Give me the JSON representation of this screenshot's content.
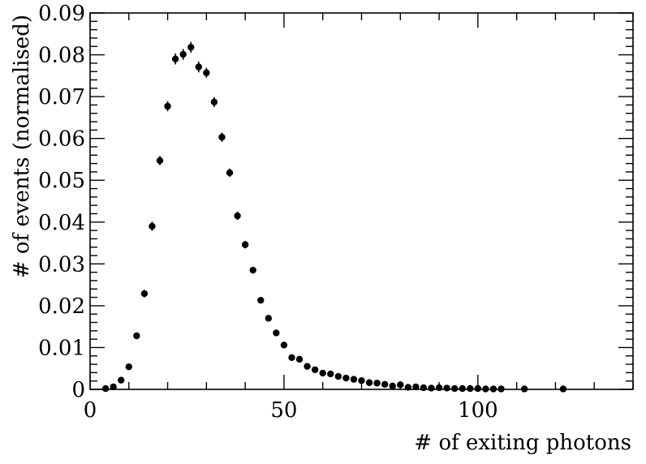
{
  "chart_data": {
    "type": "scatter",
    "title": "",
    "xlabel": "# of exiting photons",
    "ylabel": "# of events (normalised)",
    "xlim": [
      0,
      140
    ],
    "ylim": [
      0,
      0.09
    ],
    "xticks": [
      0,
      50,
      100
    ],
    "xtick_labels": [
      "0",
      "50",
      "100"
    ],
    "yticks": [
      0,
      0.01,
      0.02,
      0.03,
      0.04,
      0.05,
      0.06,
      0.07,
      0.08,
      0.09
    ],
    "ytick_labels": [
      "0",
      "0.01",
      "0.02",
      "0.03",
      "0.04",
      "0.05",
      "0.06",
      "0.07",
      "0.08",
      "0.09"
    ],
    "grid": false,
    "legend": "none",
    "marker_color": "#000000",
    "series": [
      {
        "x": [
          4,
          6,
          8,
          10,
          12,
          14,
          16,
          18,
          20,
          22,
          24,
          26,
          28,
          30,
          32,
          34,
          36,
          38,
          40,
          42,
          44,
          46,
          48,
          50,
          52,
          54,
          56,
          58,
          60,
          62,
          64,
          66,
          68,
          70,
          72,
          74,
          76,
          78,
          80,
          82,
          84,
          86,
          88,
          90,
          92,
          94,
          96,
          98,
          100,
          102,
          104,
          106,
          112,
          122
        ],
        "y": [
          0.0002,
          0.0006,
          0.0022,
          0.0054,
          0.0128,
          0.0229,
          0.039,
          0.0547,
          0.0677,
          0.079,
          0.0801,
          0.0818,
          0.0771,
          0.0757,
          0.0687,
          0.0603,
          0.0518,
          0.0415,
          0.0346,
          0.0285,
          0.0213,
          0.017,
          0.0135,
          0.0106,
          0.0076,
          0.0072,
          0.0055,
          0.0047,
          0.0039,
          0.0037,
          0.0031,
          0.0027,
          0.0024,
          0.0021,
          0.0016,
          0.0015,
          0.0012,
          0.0008,
          0.0011,
          0.0005,
          0.0006,
          0.0004,
          0.0003,
          0.0004,
          0.0003,
          0.0002,
          0.0002,
          0.0002,
          0.0002,
          0.0001,
          0.0001,
          0.0001,
          0.0001,
          0.0001
        ],
        "yerr": [
          0.0001,
          0.0002,
          0.0004,
          0.0006,
          0.0008,
          0.0009,
          0.0011,
          0.0011,
          0.0012,
          0.0013,
          0.0013,
          0.0013,
          0.0013,
          0.0012,
          0.0012,
          0.0011,
          0.001,
          0.001,
          0.0009,
          0.0008,
          0.0007,
          0.0006,
          0.0006,
          0.0005,
          0.0005,
          0.0004,
          0.0004,
          0.0003,
          0.0003,
          0.0003,
          0.0003,
          0.0002,
          0.0002,
          0.0002,
          0.0002,
          0.0002,
          0.0001,
          0.0001,
          0.0001,
          0.0001,
          0.0001,
          0.0001,
          0.0001,
          0.0001,
          0.0001,
          0.0001,
          0.0001,
          0.0001,
          0.0001,
          0.0001,
          0.0001,
          0.0001,
          0.0001,
          0.0001
        ]
      }
    ]
  }
}
